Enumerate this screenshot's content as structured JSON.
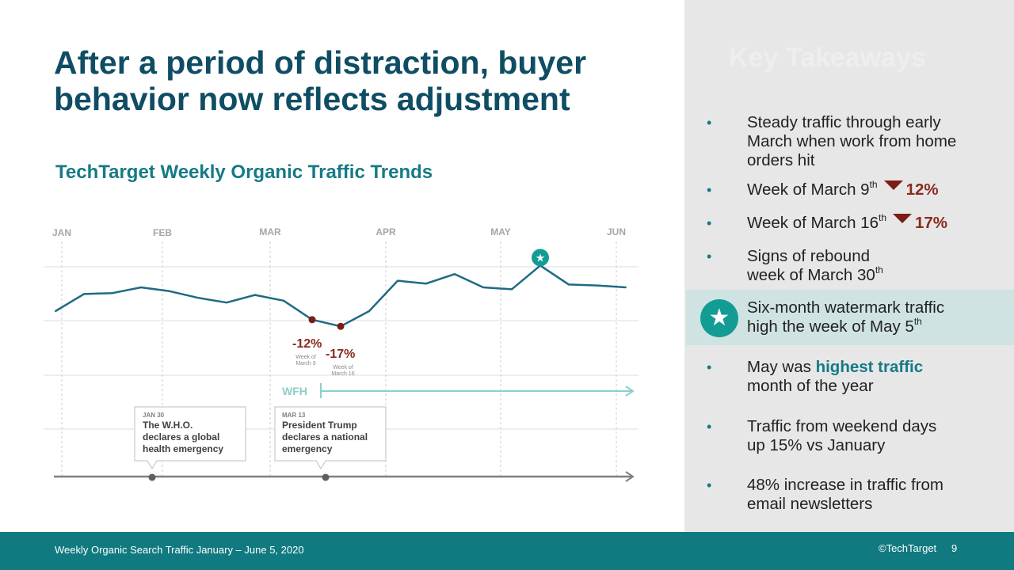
{
  "slide": {
    "title_line1": "After a period of distraction, buyer",
    "title_line2": "behavior now reflects adjustment",
    "subtitle": "TechTarget Weekly Organic Traffic Trends"
  },
  "chart_data": {
    "type": "line",
    "title": "TechTarget Weekly Organic Traffic Trends",
    "xlabel": "",
    "ylabel": "",
    "x_ticks": [
      "JAN",
      "FEB",
      "MAR",
      "APR",
      "MAY",
      "JUN"
    ],
    "grid": true,
    "series": [
      {
        "values": [
          10,
          28,
          29,
          35,
          31,
          24,
          19,
          27,
          21,
          1,
          -6,
          10,
          42,
          39,
          49,
          35,
          33,
          58,
          38,
          37,
          35
        ],
        "color": "#1f6a84"
      }
    ],
    "markers": [
      {
        "point_index": 9,
        "label": "-12%",
        "note": "Week of March 9",
        "color": "#7b1d14"
      },
      {
        "point_index": 10,
        "label": "-17%",
        "note": "Week of March 16",
        "color": "#7b1d14"
      },
      {
        "point_index": 17,
        "icon": "star-icon",
        "color": "#139c93"
      }
    ],
    "period": {
      "label": "WFH",
      "color": "#8ccfc9"
    },
    "timeline_events": [
      {
        "date": "JAN 30",
        "text_lines": [
          "The W.H.O.",
          "declares a global",
          "health emergency"
        ]
      },
      {
        "date": "MAR 13",
        "text_lines": [
          "President Trump",
          "declares a national",
          "emergency"
        ]
      }
    ]
  },
  "panel": {
    "heading": "Key Takeaways",
    "b1_l1": "Steady traffic through early",
    "b1_l2": "March when work from home",
    "b1_l3": "orders hit",
    "b2_text": "Week of March 9",
    "b2_sup": "th",
    "b2_pct": "12%",
    "b3_text": "Week of March 16",
    "b3_sup": "th",
    "b3_pct": "17%",
    "b4_l1": "Signs of rebound",
    "b4_l2": "week of March 30",
    "b4_sup": "th",
    "b5_l1": "Six-month watermark traffic",
    "b5_l2": "high the week of May 5",
    "b5_sup": "th",
    "b6_pre": "May was ",
    "b6_hl": "highest traffic",
    "b6_l2": "month of the year",
    "b7_l1": "Traffic from weekend days",
    "b7_l2": "up 15% vs January",
    "b8_l1": "48% increase in traffic from",
    "b8_l2": "email newsletters"
  },
  "footer": {
    "left": "Weekly Organic Search Traffic January – June 5, 2020",
    "copyright": "©TechTarget",
    "page": "9"
  },
  "colors": {
    "title": "#0f4d64",
    "accent": "#167a86",
    "negative": "#7b1d14",
    "footer": "#107a80"
  }
}
